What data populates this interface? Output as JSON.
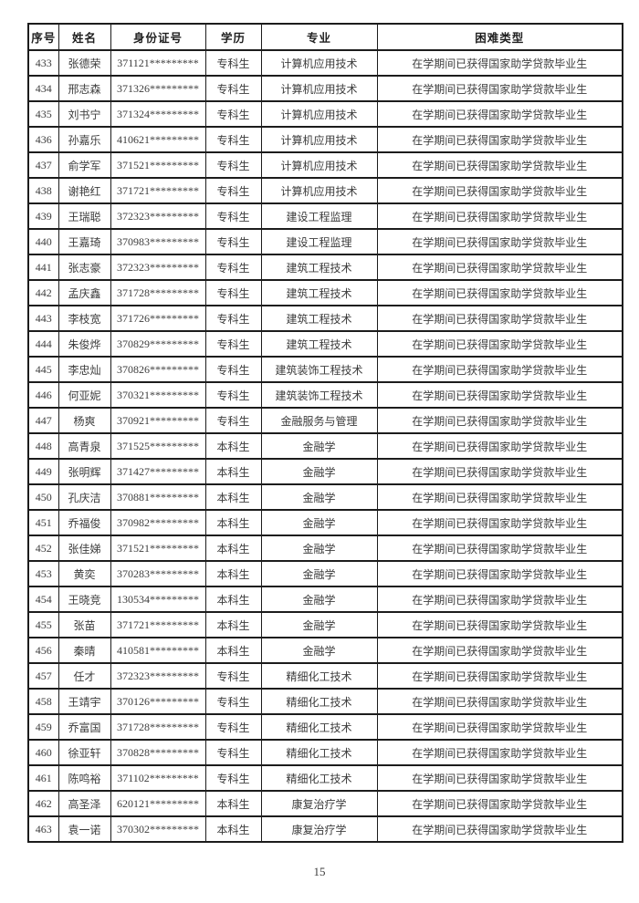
{
  "document": {
    "page_number": "15"
  },
  "table": {
    "headers": [
      "序号",
      "姓名",
      "身份证号",
      "学历",
      "专业",
      "困难类型"
    ],
    "rows": [
      {
        "no": "433",
        "name": "张德荣",
        "id": "371121*********",
        "degree": "专科生",
        "major": "计算机应用技术",
        "difficulty": "在学期间已获得国家助学贷款毕业生"
      },
      {
        "no": "434",
        "name": "邢志森",
        "id": "371326*********",
        "degree": "专科生",
        "major": "计算机应用技术",
        "difficulty": "在学期间已获得国家助学贷款毕业生"
      },
      {
        "no": "435",
        "name": "刘书宁",
        "id": "371324*********",
        "degree": "专科生",
        "major": "计算机应用技术",
        "difficulty": "在学期间已获得国家助学贷款毕业生"
      },
      {
        "no": "436",
        "name": "孙嘉乐",
        "id": "410621*********",
        "degree": "专科生",
        "major": "计算机应用技术",
        "difficulty": "在学期间已获得国家助学贷款毕业生"
      },
      {
        "no": "437",
        "name": "俞学军",
        "id": "371521*********",
        "degree": "专科生",
        "major": "计算机应用技术",
        "difficulty": "在学期间已获得国家助学贷款毕业生"
      },
      {
        "no": "438",
        "name": "谢艳红",
        "id": "371721*********",
        "degree": "专科生",
        "major": "计算机应用技术",
        "difficulty": "在学期间已获得国家助学贷款毕业生"
      },
      {
        "no": "439",
        "name": "王瑞聪",
        "id": "372323*********",
        "degree": "专科生",
        "major": "建设工程监理",
        "difficulty": "在学期间已获得国家助学贷款毕业生"
      },
      {
        "no": "440",
        "name": "王嘉琦",
        "id": "370983*********",
        "degree": "专科生",
        "major": "建设工程监理",
        "difficulty": "在学期间已获得国家助学贷款毕业生"
      },
      {
        "no": "441",
        "name": "张志豪",
        "id": "372323*********",
        "degree": "专科生",
        "major": "建筑工程技术",
        "difficulty": "在学期间已获得国家助学贷款毕业生"
      },
      {
        "no": "442",
        "name": "孟庆鑫",
        "id": "371728*********",
        "degree": "专科生",
        "major": "建筑工程技术",
        "difficulty": "在学期间已获得国家助学贷款毕业生"
      },
      {
        "no": "443",
        "name": "李枝宽",
        "id": "371726*********",
        "degree": "专科生",
        "major": "建筑工程技术",
        "difficulty": "在学期间已获得国家助学贷款毕业生"
      },
      {
        "no": "444",
        "name": "朱俊烨",
        "id": "370829*********",
        "degree": "专科生",
        "major": "建筑工程技术",
        "difficulty": "在学期间已获得国家助学贷款毕业生"
      },
      {
        "no": "445",
        "name": "李忠灿",
        "id": "370826*********",
        "degree": "专科生",
        "major": "建筑装饰工程技术",
        "difficulty": "在学期间已获得国家助学贷款毕业生"
      },
      {
        "no": "446",
        "name": "何亚妮",
        "id": "370321*********",
        "degree": "专科生",
        "major": "建筑装饰工程技术",
        "difficulty": "在学期间已获得国家助学贷款毕业生"
      },
      {
        "no": "447",
        "name": "杨爽",
        "id": "370921*********",
        "degree": "专科生",
        "major": "金融服务与管理",
        "difficulty": "在学期间已获得国家助学贷款毕业生"
      },
      {
        "no": "448",
        "name": "高青泉",
        "id": "371525*********",
        "degree": "本科生",
        "major": "金融学",
        "difficulty": "在学期间已获得国家助学贷款毕业生"
      },
      {
        "no": "449",
        "name": "张明辉",
        "id": "371427*********",
        "degree": "本科生",
        "major": "金融学",
        "difficulty": "在学期间已获得国家助学贷款毕业生"
      },
      {
        "no": "450",
        "name": "孔庆洁",
        "id": "370881*********",
        "degree": "本科生",
        "major": "金融学",
        "difficulty": "在学期间已获得国家助学贷款毕业生"
      },
      {
        "no": "451",
        "name": "乔福俊",
        "id": "370982*********",
        "degree": "本科生",
        "major": "金融学",
        "difficulty": "在学期间已获得国家助学贷款毕业生"
      },
      {
        "no": "452",
        "name": "张佳娣",
        "id": "371521*********",
        "degree": "本科生",
        "major": "金融学",
        "difficulty": "在学期间已获得国家助学贷款毕业生"
      },
      {
        "no": "453",
        "name": "黄奕",
        "id": "370283*********",
        "degree": "本科生",
        "major": "金融学",
        "difficulty": "在学期间已获得国家助学贷款毕业生"
      },
      {
        "no": "454",
        "name": "王晓竞",
        "id": "130534*********",
        "degree": "本科生",
        "major": "金融学",
        "difficulty": "在学期间已获得国家助学贷款毕业生"
      },
      {
        "no": "455",
        "name": "张苗",
        "id": "371721*********",
        "degree": "本科生",
        "major": "金融学",
        "difficulty": "在学期间已获得国家助学贷款毕业生"
      },
      {
        "no": "456",
        "name": "秦晴",
        "id": "410581*********",
        "degree": "本科生",
        "major": "金融学",
        "difficulty": "在学期间已获得国家助学贷款毕业生"
      },
      {
        "no": "457",
        "name": "任才",
        "id": "372323*********",
        "degree": "专科生",
        "major": "精细化工技术",
        "difficulty": "在学期间已获得国家助学贷款毕业生"
      },
      {
        "no": "458",
        "name": "王靖宇",
        "id": "370126*********",
        "degree": "专科生",
        "major": "精细化工技术",
        "difficulty": "在学期间已获得国家助学贷款毕业生"
      },
      {
        "no": "459",
        "name": "乔富国",
        "id": "371728*********",
        "degree": "专科生",
        "major": "精细化工技术",
        "difficulty": "在学期间已获得国家助学贷款毕业生"
      },
      {
        "no": "460",
        "name": "徐亚轩",
        "id": "370828*********",
        "degree": "专科生",
        "major": "精细化工技术",
        "difficulty": "在学期间已获得国家助学贷款毕业生"
      },
      {
        "no": "461",
        "name": "陈鸣裕",
        "id": "371102*********",
        "degree": "专科生",
        "major": "精细化工技术",
        "difficulty": "在学期间已获得国家助学贷款毕业生"
      },
      {
        "no": "462",
        "name": "高圣泽",
        "id": "620121*********",
        "degree": "本科生",
        "major": "康复治疗学",
        "difficulty": "在学期间已获得国家助学贷款毕业生"
      },
      {
        "no": "463",
        "name": "袁一诺",
        "id": "370302*********",
        "degree": "本科生",
        "major": "康复治疗学",
        "difficulty": "在学期间已获得国家助学贷款毕业生"
      }
    ]
  }
}
